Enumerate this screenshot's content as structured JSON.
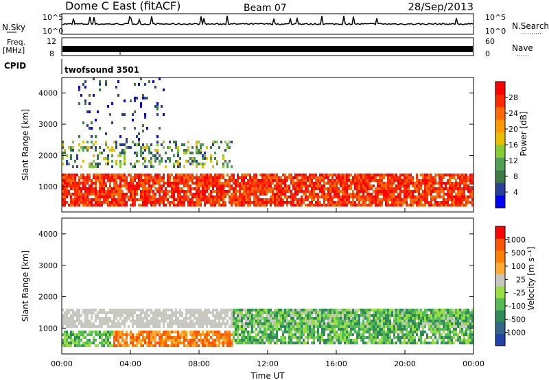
{
  "header": {
    "title": "Dome C East (fitACF)",
    "beam": "Beam 07",
    "date": "28/Sep/2013"
  },
  "status_panels": {
    "nsky_label": "N.Sky",
    "nsky_ticks": [
      "10^5",
      "10^0"
    ],
    "nsearch_label": "N.Search",
    "nsearch_ticks": [
      "10^5",
      "10^0"
    ],
    "freq_label": "Freq.",
    "freq_unit": "[MHz]",
    "freq_ticks": [
      "12",
      "8"
    ],
    "nave_label": "Nave",
    "nave_ticks": [
      "60",
      "0"
    ],
    "cpid_label": "CPID",
    "cpid_value": "twofsound 3501"
  },
  "chart_data": [
    {
      "type": "heatmap",
      "name": "power",
      "ylabel": "Slant Range [km]",
      "ylim": [
        180,
        4500
      ],
      "y_ticks": [
        "1000",
        "2000",
        "3000",
        "4000"
      ],
      "x_ticks": [
        "00:00",
        "04:00",
        "08:00",
        "12:00",
        "16:00",
        "20:00",
        "00:00"
      ],
      "xlim_hours": [
        0,
        24
      ],
      "colorbar": {
        "label": "Power [dB]",
        "ticks": [
          "28",
          "24",
          "20",
          "16",
          "12",
          "8",
          "4"
        ],
        "colors": [
          "#0000ff",
          "#2a3f9a",
          "#3d7a45",
          "#4f9f55",
          "#88cc33",
          "#e6c000",
          "#ff9900",
          "#ff6a00",
          "#ff2a00",
          "#ff0000"
        ]
      },
      "features": [
        {
          "band": "main F-region echoes",
          "range_km": [
            400,
            1400
          ],
          "hours": [
            0,
            24
          ],
          "power_db": 28
        },
        {
          "band": "mid-range scatter",
          "range_km": [
            1600,
            2500
          ],
          "hours": [
            0,
            10
          ],
          "power_db": 10
        },
        {
          "band": "sporadic far-range",
          "range_km": [
            2500,
            4500
          ],
          "hours": [
            1,
            6
          ],
          "power_db": 6
        }
      ]
    },
    {
      "type": "heatmap",
      "name": "velocity",
      "ylabel": "Slant Range [km]",
      "ylim": [
        180,
        4500
      ],
      "y_ticks": [
        "1000",
        "2000",
        "3000",
        "4000"
      ],
      "x_ticks": [
        "00:00",
        "04:00",
        "08:00",
        "12:00",
        "16:00",
        "20:00",
        "00:00"
      ],
      "xlabel": "Time UT",
      "xlim_hours": [
        0,
        24
      ],
      "colorbar": {
        "label": "Velocity [m s⁻¹]",
        "ticks": [
          "1000",
          "500",
          "100",
          "25",
          "-25",
          "-100",
          "-500",
          "-1000"
        ],
        "colors": [
          "#2244aa",
          "#336688",
          "#2e8b57",
          "#55bb55",
          "#99dd44",
          "#c8c8c0",
          "#ffaa33",
          "#ff8000",
          "#ff5500",
          "#ff0000"
        ]
      },
      "features": [
        {
          "band": "ground scatter",
          "range_km": [
            1000,
            1600
          ],
          "hours": [
            0,
            24
          ],
          "velocity": 0
        },
        {
          "band": "low-range positive flow",
          "range_km": [
            400,
            900
          ],
          "hours": [
            0,
            3
          ],
          "velocity": 100
        },
        {
          "band": "negative flow",
          "range_km": [
            400,
            900
          ],
          "hours": [
            3,
            10
          ],
          "velocity": -100
        },
        {
          "band": "positive flow",
          "range_km": [
            500,
            1600
          ],
          "hours": [
            10,
            24
          ],
          "velocity": 100
        }
      ]
    }
  ]
}
